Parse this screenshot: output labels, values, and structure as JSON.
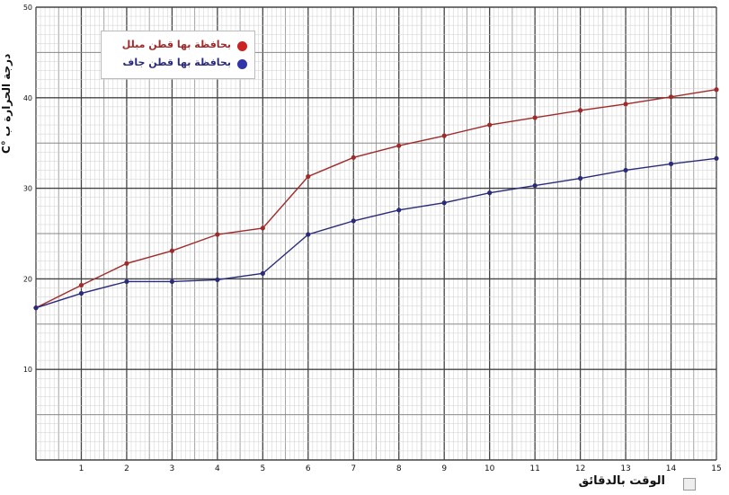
{
  "chart_data": {
    "type": "line",
    "title": "",
    "xlabel": "الوقت بالدقائق",
    "ylabel": "درجة الحرارة ب °C",
    "x": [
      0,
      1,
      2,
      3,
      4,
      5,
      6,
      7,
      8,
      9,
      10,
      11,
      12,
      13,
      14,
      15
    ],
    "xlim": [
      0,
      15
    ],
    "ylim": [
      0,
      50
    ],
    "x_ticks": [
      "1",
      "2",
      "3",
      "4",
      "5",
      "6",
      "7",
      "8",
      "9",
      "10",
      "11",
      "12",
      "13",
      "14",
      "15"
    ],
    "y_ticks": [
      "10",
      "20",
      "30",
      "40",
      "50"
    ],
    "grid": true,
    "legend_position": "top-left",
    "series": [
      {
        "name": "بحافظة بها قطن مبلل",
        "color": "#a02a2a",
        "values": [
          16.8,
          19.3,
          21.7,
          23.1,
          24.9,
          25.6,
          31.3,
          33.4,
          34.7,
          35.8,
          37.0,
          37.8,
          38.6,
          39.3,
          40.1,
          40.9
        ]
      },
      {
        "name": "بحافظة بها قطن جاف",
        "color": "#2a2a7a",
        "values": [
          16.8,
          18.4,
          19.7,
          19.7,
          19.9,
          20.6,
          24.9,
          26.4,
          27.6,
          28.4,
          29.5,
          30.3,
          31.1,
          32.0,
          32.7,
          33.3
        ]
      }
    ]
  },
  "legend": {
    "dot_colors": [
      "#cc2222",
      "#3333aa"
    ]
  }
}
